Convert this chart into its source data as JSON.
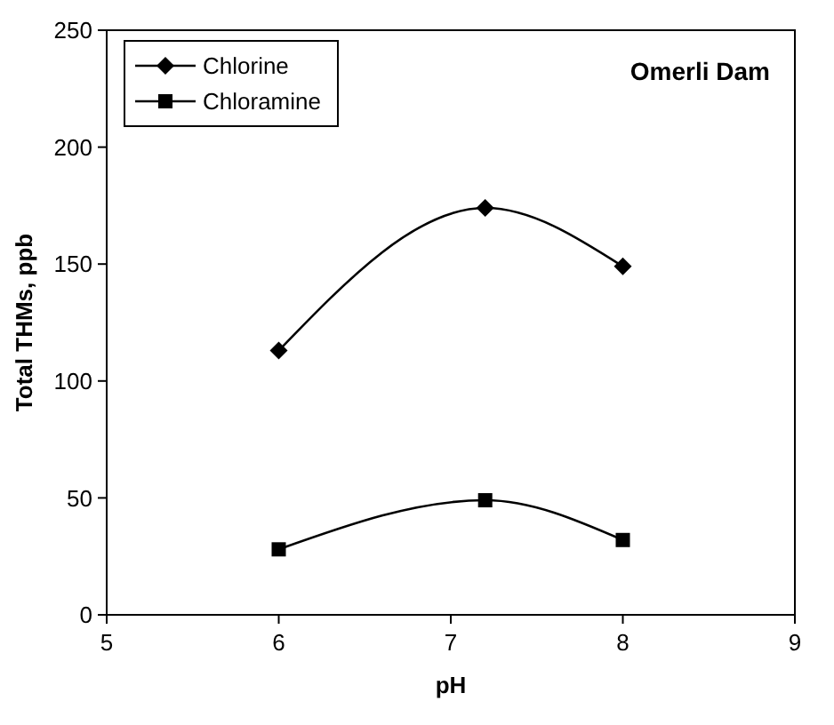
{
  "chart_data": {
    "type": "line",
    "title": "Omerli Dam",
    "xlabel": "pH",
    "ylabel": "Total THMs, ppb",
    "x": [
      6,
      7.2,
      8
    ],
    "series": [
      {
        "name": "Chlorine",
        "color": "#000000",
        "marker": "diamond",
        "values": [
          113,
          174,
          149
        ]
      },
      {
        "name": "Chloramine",
        "color": "#000000",
        "marker": "square",
        "values": [
          28,
          49,
          32
        ]
      }
    ],
    "xlim": [
      5,
      9
    ],
    "xticks": [
      5,
      6,
      7,
      8,
      9
    ],
    "ylim": [
      0,
      250
    ],
    "yticks": [
      0,
      50,
      100,
      150,
      200,
      250
    ],
    "grid": false,
    "legend": "top left",
    "line_style": "solid"
  }
}
